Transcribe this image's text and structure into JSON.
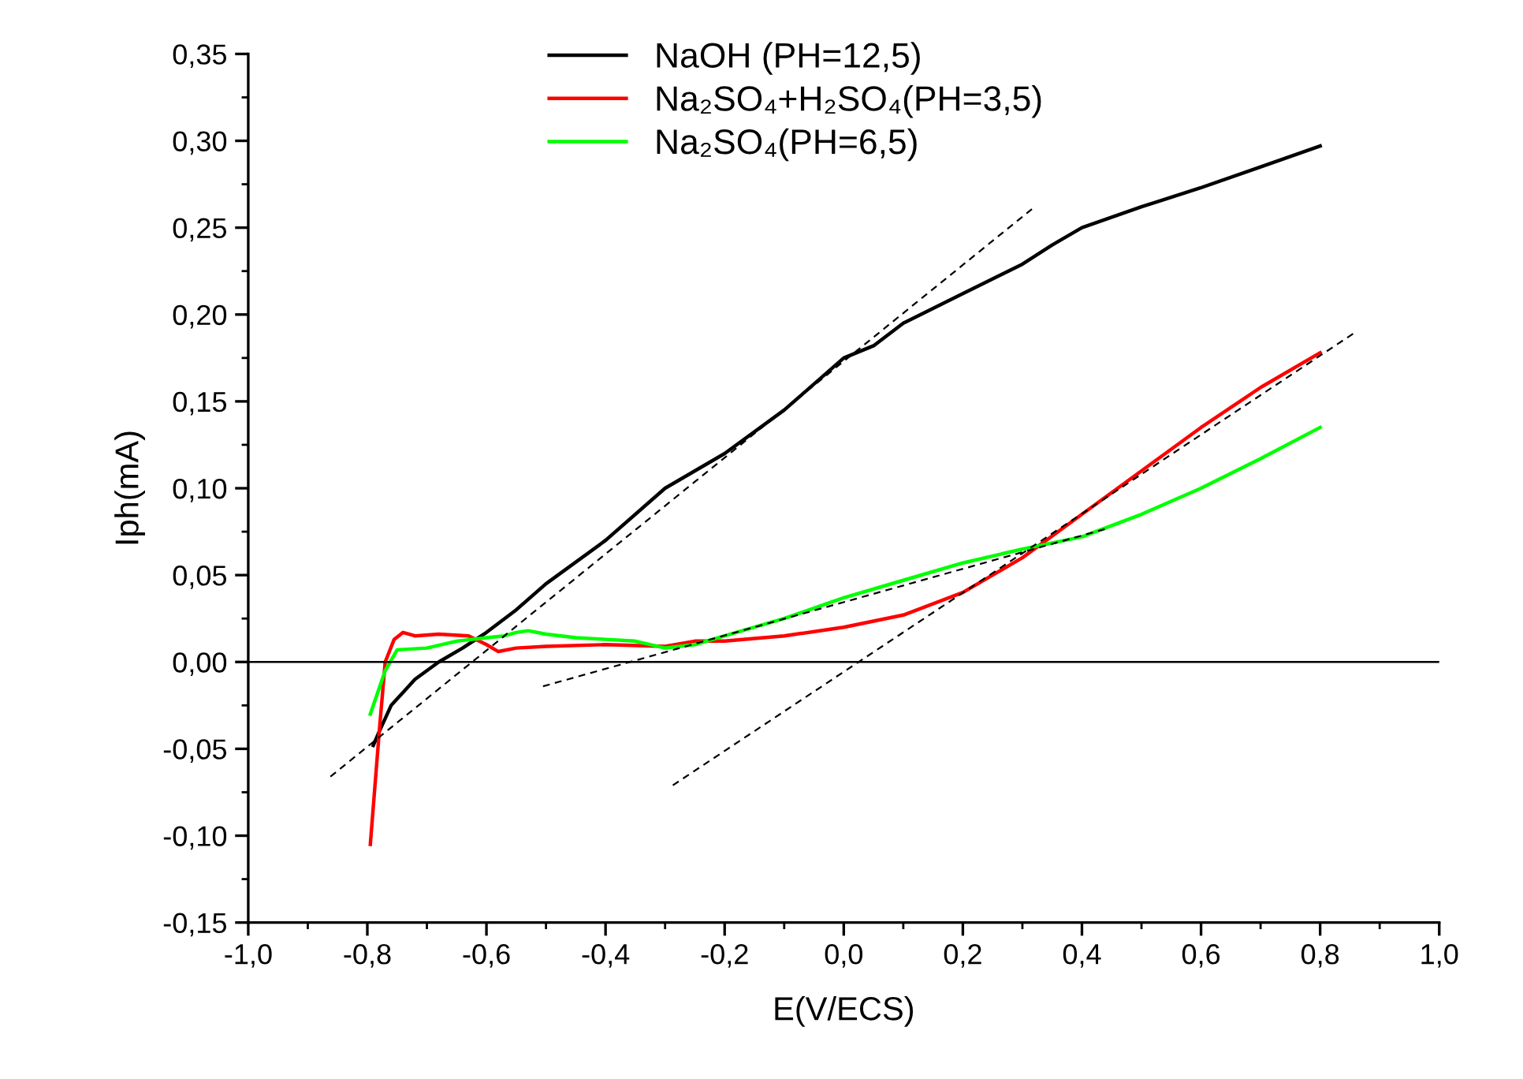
{
  "chart_data": {
    "type": "line",
    "xlabel": "E(V/ECS)",
    "ylabel": "Iph(mA)",
    "xlim": [
      -1.0,
      1.0
    ],
    "ylim": [
      -0.15,
      0.35
    ],
    "xticks": [
      {
        "value": -1.0,
        "label": "-1,0"
      },
      {
        "value": -0.8,
        "label": "-0,8"
      },
      {
        "value": -0.6,
        "label": "-0,6"
      },
      {
        "value": -0.4,
        "label": "-0,4"
      },
      {
        "value": -0.2,
        "label": "-0,2"
      },
      {
        "value": 0.0,
        "label": "0,0"
      },
      {
        "value": 0.2,
        "label": "0,2"
      },
      {
        "value": 0.4,
        "label": "0,4"
      },
      {
        "value": 0.6,
        "label": "0,6"
      },
      {
        "value": 0.8,
        "label": "0,8"
      },
      {
        "value": 1.0,
        "label": "1,0"
      }
    ],
    "yticks": [
      {
        "value": -0.15,
        "label": "-0,15"
      },
      {
        "value": -0.1,
        "label": "-0,10"
      },
      {
        "value": -0.05,
        "label": "-0,05"
      },
      {
        "value": 0.0,
        "label": "0,00"
      },
      {
        "value": 0.05,
        "label": "0,05"
      },
      {
        "value": 0.1,
        "label": "0,10"
      },
      {
        "value": 0.15,
        "label": "0,15"
      },
      {
        "value": 0.2,
        "label": "0,20"
      },
      {
        "value": 0.25,
        "label": "0,25"
      },
      {
        "value": 0.3,
        "label": "0,30"
      },
      {
        "value": 0.35,
        "label": "0,35"
      }
    ],
    "grid": false,
    "legend": "top",
    "marker": "none",
    "line_style": "solid",
    "ref_lines": [
      {
        "axis": "y",
        "value": 0,
        "color": "#000000",
        "line_style": "solid"
      }
    ],
    "series": [
      {
        "name": "NaOH (PH=12,5)",
        "color": "#000000",
        "x": [
          -0.79,
          -0.78,
          -0.76,
          -0.72,
          -0.68,
          -0.64,
          -0.6,
          -0.55,
          -0.5,
          -0.4,
          -0.3,
          -0.2,
          -0.1,
          0.0,
          0.05,
          0.1,
          0.2,
          0.3,
          0.35,
          0.4,
          0.5,
          0.6,
          0.7,
          0.8
        ],
        "values": [
          -0.048,
          -0.04,
          -0.025,
          -0.01,
          0.0,
          0.008,
          0.017,
          0.03,
          0.045,
          0.07,
          0.1,
          0.12,
          0.145,
          0.175,
          0.182,
          0.195,
          0.212,
          0.229,
          0.24,
          0.25,
          0.262,
          0.273,
          0.285,
          0.297
        ]
      },
      {
        "name": "Na₂SO₄+H₂SO₄(PH=3,5)",
        "color": "#ff0000",
        "x": [
          -0.795,
          -0.78,
          -0.77,
          -0.755,
          -0.74,
          -0.72,
          -0.68,
          -0.63,
          -0.6,
          -0.58,
          -0.55,
          -0.5,
          -0.4,
          -0.3,
          -0.25,
          -0.2,
          -0.1,
          0.0,
          0.1,
          0.2,
          0.3,
          0.4,
          0.5,
          0.6,
          0.7,
          0.8
        ],
        "values": [
          -0.105,
          -0.04,
          0.0,
          0.013,
          0.017,
          0.015,
          0.016,
          0.015,
          0.01,
          0.006,
          0.008,
          0.009,
          0.01,
          0.009,
          0.012,
          0.012,
          0.015,
          0.02,
          0.027,
          0.04,
          0.06,
          0.085,
          0.11,
          0.135,
          0.158,
          0.178
        ]
      },
      {
        "name": "Na₂SO₄(PH=6,5)",
        "color": "#00ff00",
        "x": [
          -0.795,
          -0.77,
          -0.75,
          -0.7,
          -0.65,
          -0.6,
          -0.57,
          -0.55,
          -0.53,
          -0.5,
          -0.45,
          -0.4,
          -0.35,
          -0.3,
          -0.25,
          -0.2,
          -0.1,
          0.0,
          0.1,
          0.2,
          0.3,
          0.4,
          0.5,
          0.6,
          0.7,
          0.8
        ],
        "values": [
          -0.03,
          -0.005,
          0.007,
          0.008,
          0.012,
          0.014,
          0.015,
          0.017,
          0.018,
          0.016,
          0.014,
          0.013,
          0.012,
          0.008,
          0.01,
          0.015,
          0.025,
          0.037,
          0.047,
          0.057,
          0.065,
          0.072,
          0.085,
          0.1,
          0.117,
          0.135
        ]
      },
      {
        "type": "line",
        "color": "#000000",
        "line_style": "dashed",
        "x": [
          -0.862,
          0.317
        ],
        "values": [
          -0.066,
          0.261
        ]
      },
      {
        "type": "line",
        "color": "#000000",
        "line_style": "dashed",
        "x": [
          -0.505,
          0.444
        ],
        "values": [
          -0.014,
          0.077
        ]
      },
      {
        "type": "line",
        "color": "#000000",
        "line_style": "dashed",
        "x": [
          -0.287,
          0.86
        ],
        "values": [
          -0.071,
          0.19
        ]
      }
    ]
  }
}
